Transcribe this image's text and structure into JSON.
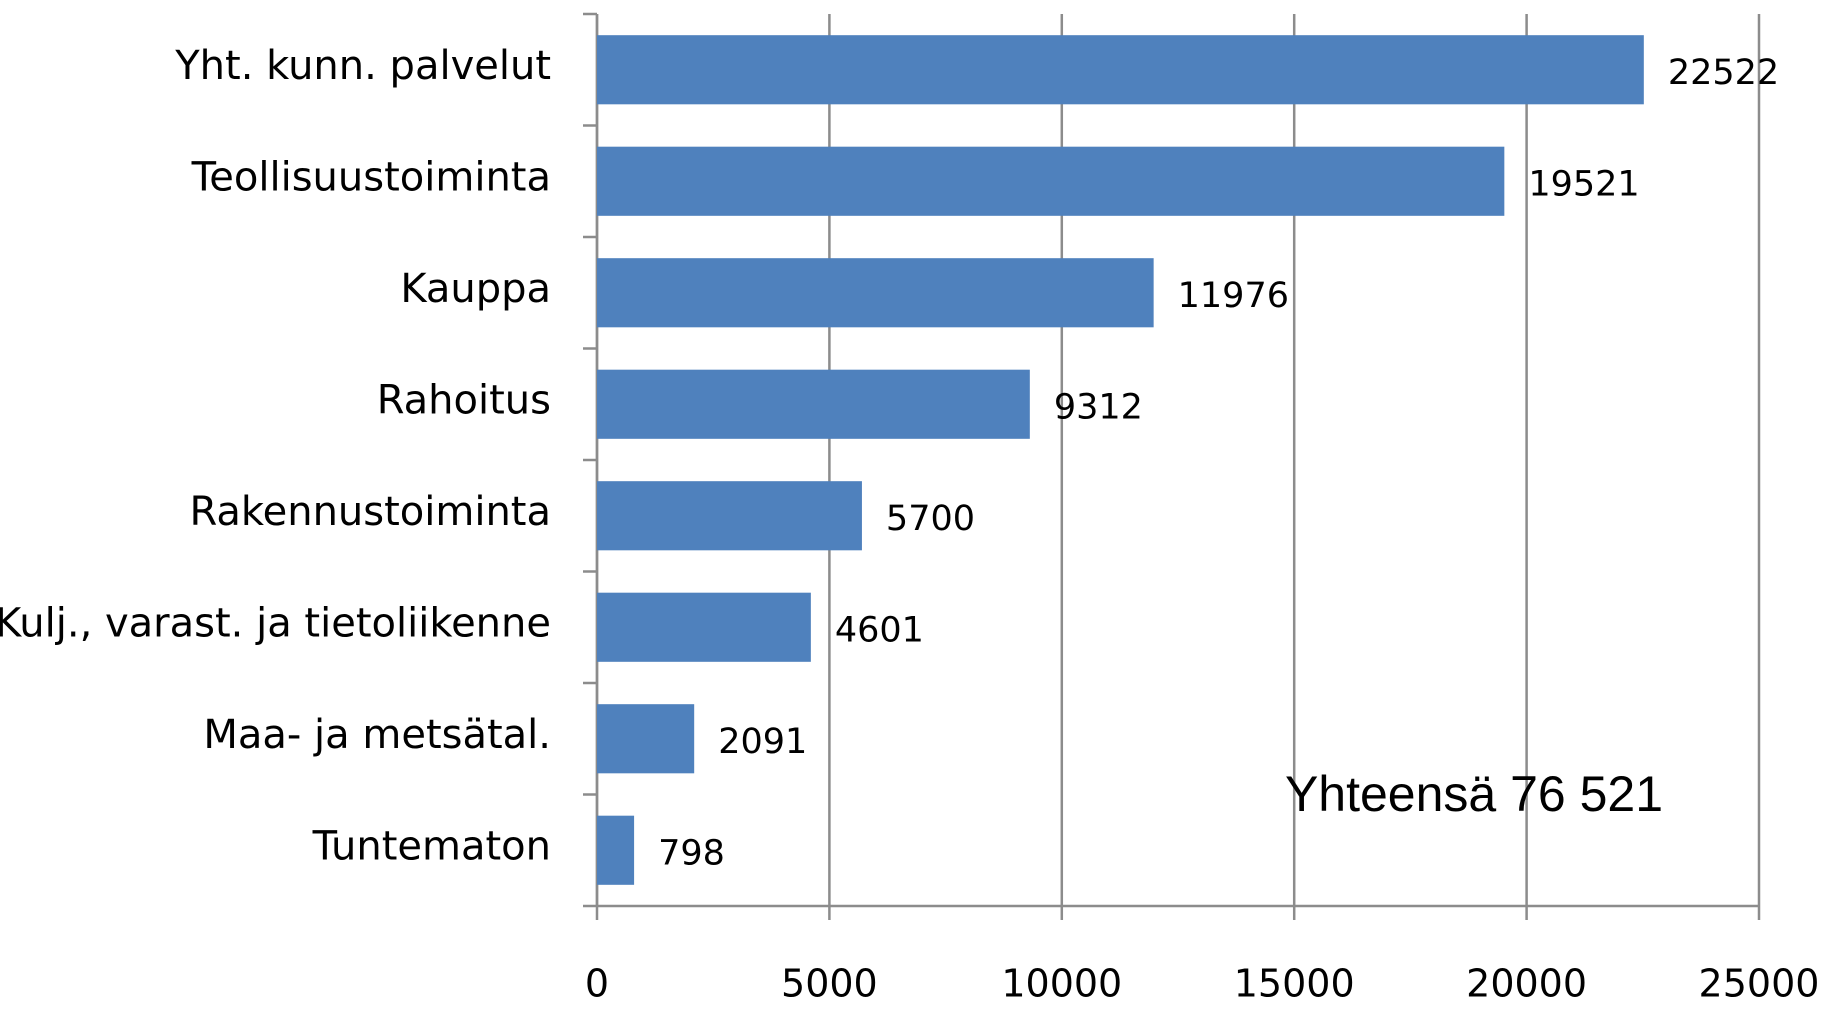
{
  "chart_data": {
    "type": "barh",
    "categories": [
      "Yht. kunn. palvelut",
      "Teollisuustoiminta",
      "Kauppa",
      "Rahoitus",
      "Rakennustoiminta",
      "Kulj., varast. ja tietoliikenne",
      "Maa- ja metsätal.",
      "Tuntematon"
    ],
    "values": [
      22522,
      19521,
      11976,
      9312,
      5700,
      4601,
      2091,
      798
    ],
    "color": "#4f81bd",
    "xlim": [
      0,
      25000
    ],
    "xticks": [
      0,
      5000,
      10000,
      15000,
      20000,
      25000
    ],
    "grid": true,
    "annotation": "Yhteensä 76 521"
  }
}
